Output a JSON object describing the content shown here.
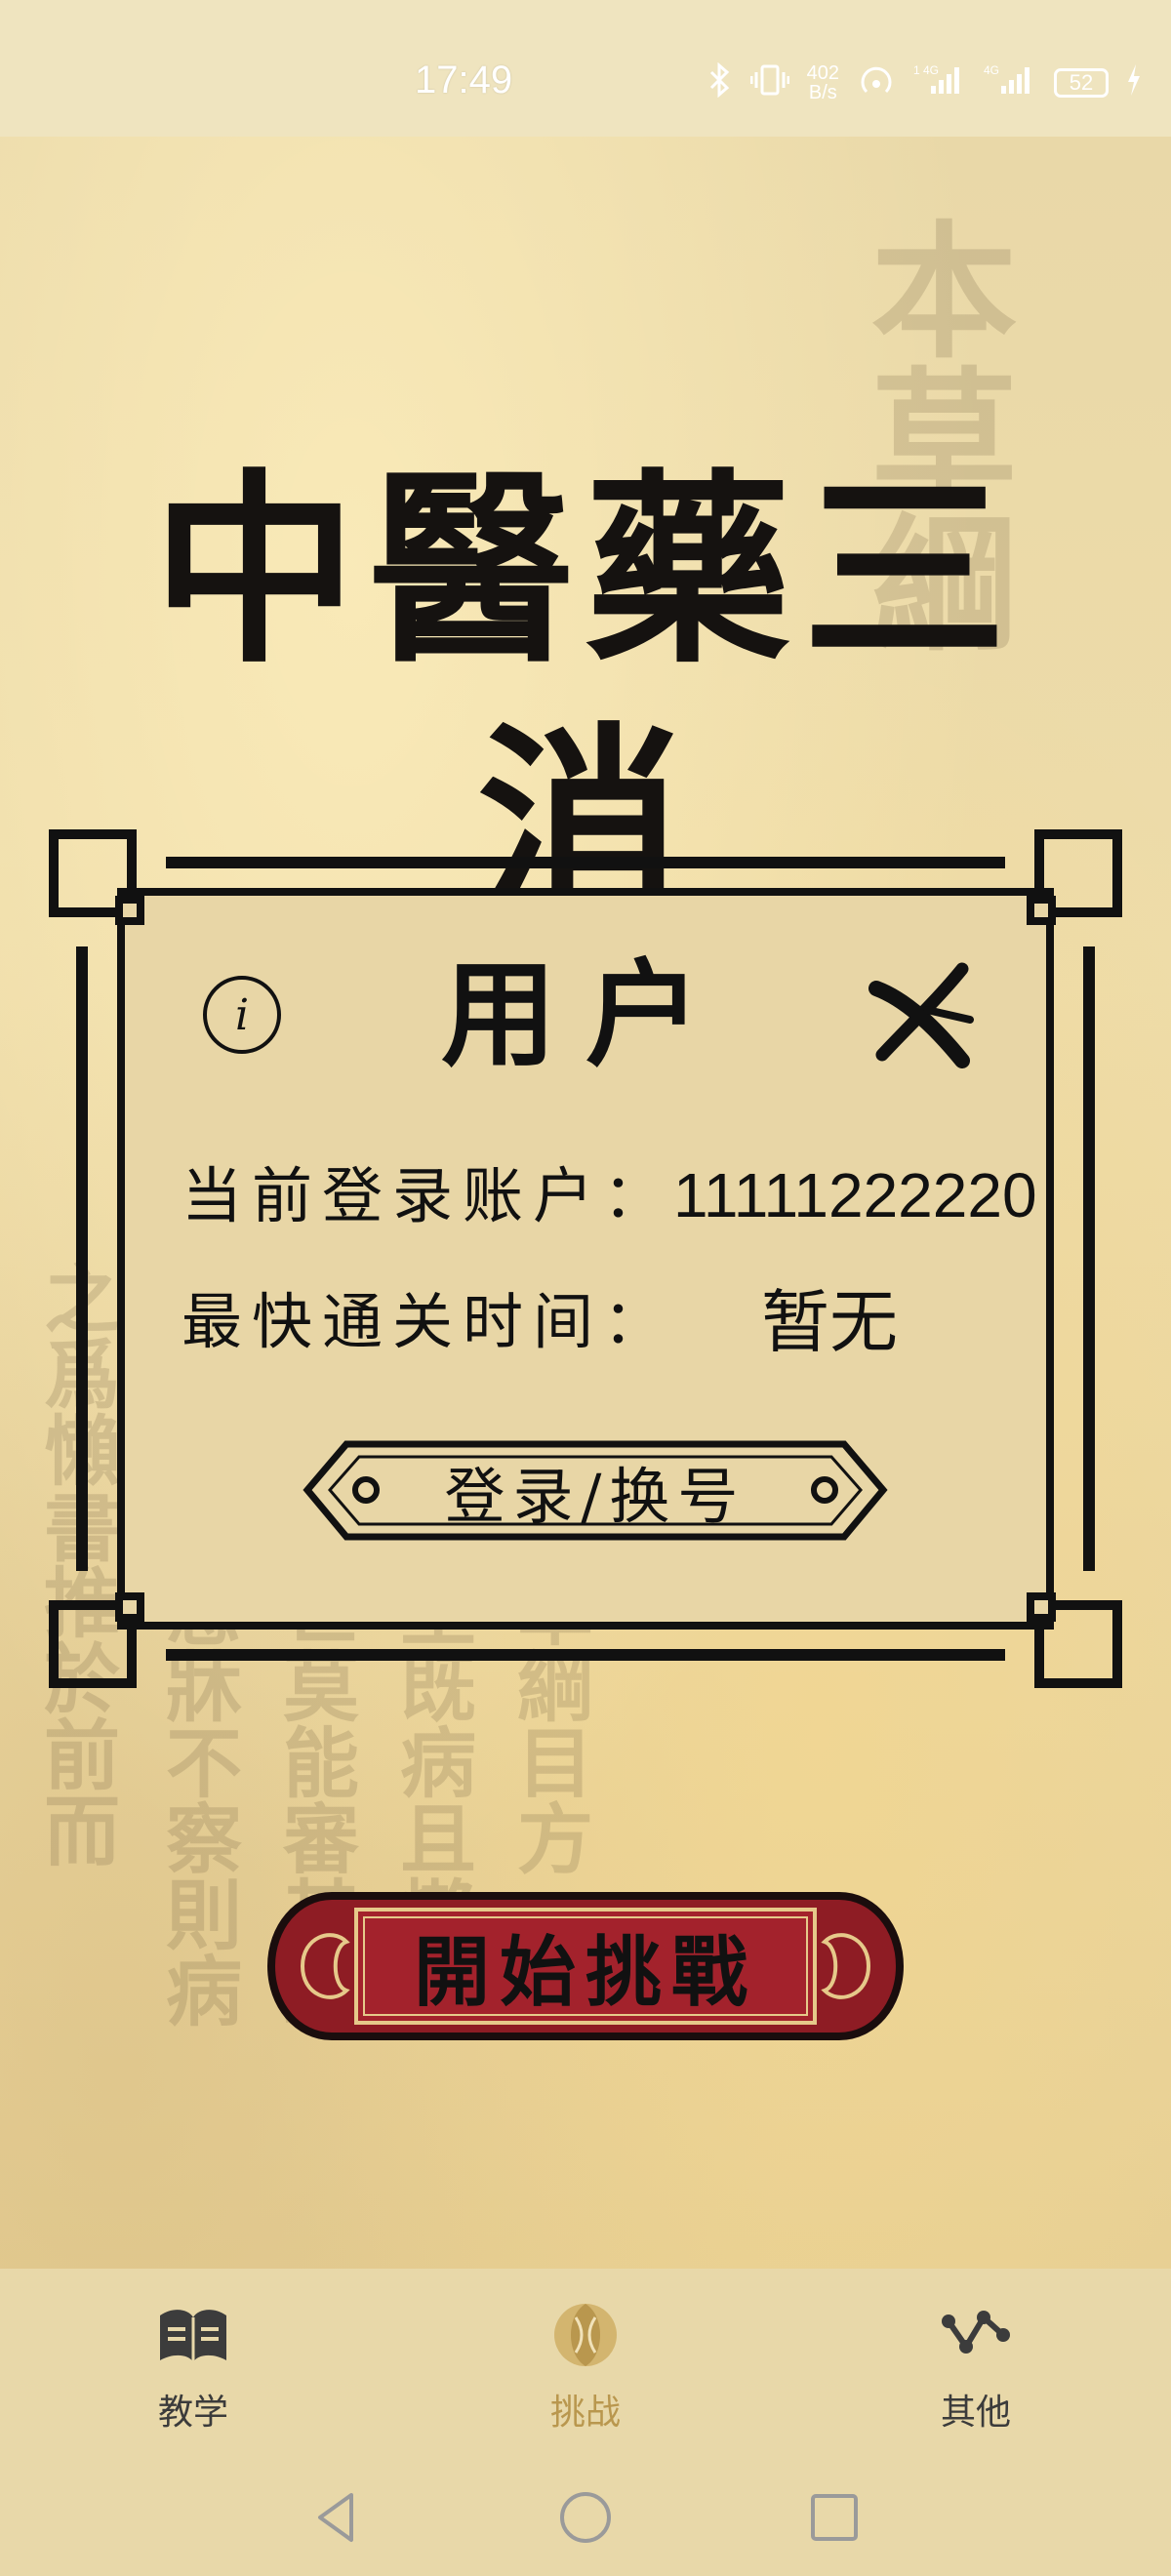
{
  "status_bar": {
    "time": "17:49",
    "net_speed_value": "402",
    "net_speed_unit": "B/s",
    "battery": "52"
  },
  "app": {
    "title": "中醫藥三消"
  },
  "dialog": {
    "info_icon_glyph": "i",
    "title": "用户",
    "account_label": "当前登录账户：",
    "account_value": "11111222220",
    "fastest_label": "最快通关时间：",
    "fastest_value": "暂无",
    "login_button": "登录/换号"
  },
  "start_button": "開始挑戰",
  "bottom_nav": {
    "items": [
      {
        "label": "教学",
        "icon": "book-icon",
        "active": false
      },
      {
        "label": "挑战",
        "icon": "challenge-icon",
        "active": true
      },
      {
        "label": "其他",
        "icon": "network-icon",
        "active": false
      }
    ]
  },
  "colors": {
    "accent_active": "#b9974e",
    "ink": "#111111",
    "parchment": "#e8d6a6",
    "button_red": "#8e1c24"
  }
}
